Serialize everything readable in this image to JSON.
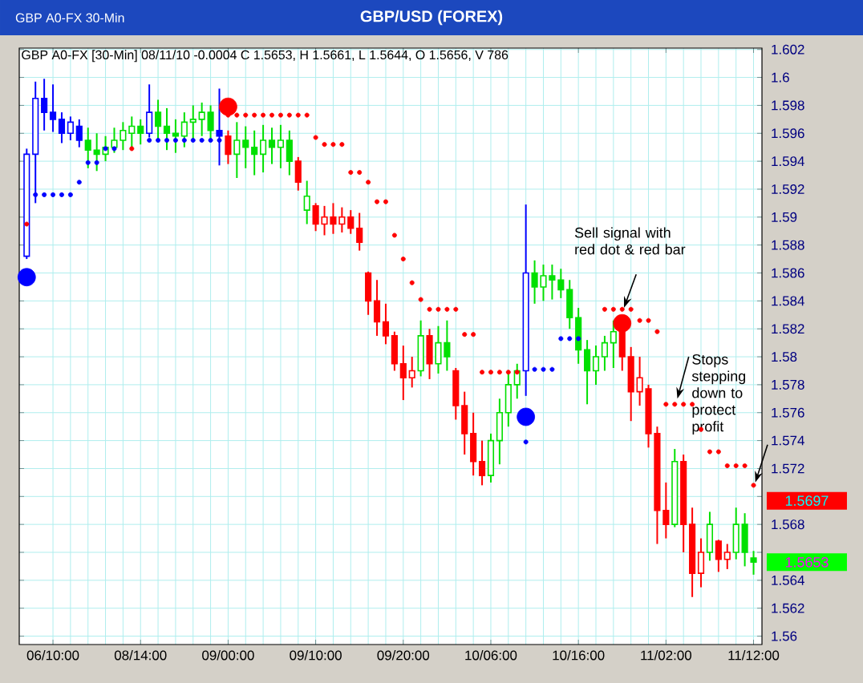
{
  "chart_data": {
    "type": "candlestick",
    "title": "GBP/USD (FOREX)",
    "subtitle": "GBP A0-FX [30-Min] 08/11/10 -0.0004 C 1.5653, H 1.5661, L 1.5644, O 1.5656, V 786",
    "categories": [
      null,
      null,
      null,
      "06/10:00",
      null,
      null,
      null,
      null,
      null,
      null,
      null,
      null,
      null,
      "08/14:00",
      null,
      null,
      null,
      null,
      null,
      null,
      null,
      null,
      null,
      "09/00:00",
      null,
      null,
      null,
      null,
      null,
      null,
      null,
      null,
      null,
      "09/10:00",
      null,
      null,
      null,
      null,
      null,
      null,
      null,
      null,
      null,
      "09/20:00",
      null,
      null,
      null,
      null,
      null,
      null,
      null,
      null,
      null,
      "10/06:00",
      null,
      null,
      null,
      null,
      null,
      null,
      null,
      null,
      null,
      "10/16:00",
      null,
      null,
      null,
      null,
      null,
      null,
      null,
      null,
      null,
      "11/02:00",
      null,
      null,
      null,
      null,
      null,
      null,
      null,
      null,
      null,
      "11/12:00"
    ],
    "ohlc": [
      [
        1.5872,
        1.5949,
        1.587,
        1.5945
      ],
      [
        1.5945,
        1.5997,
        1.591,
        1.5985
      ],
      [
        1.5985,
        1.5999,
        1.5962,
        1.5975
      ],
      [
        1.5975,
        1.5995,
        1.5961,
        1.597
      ],
      [
        1.597,
        1.5975,
        1.5953,
        1.596
      ],
      [
        1.596,
        1.5972,
        1.5955,
        1.5968
      ],
      [
        1.5965,
        1.597,
        1.595,
        1.5955
      ],
      [
        1.5955,
        1.5964,
        1.5935,
        1.5948
      ],
      [
        1.5948,
        1.596,
        1.5933,
        1.5945
      ],
      [
        1.5945,
        1.5958,
        1.594,
        1.595
      ],
      [
        1.595,
        1.5964,
        1.5946,
        1.5955
      ],
      [
        1.5955,
        1.5968,
        1.5948,
        1.5962
      ],
      [
        1.596,
        1.5972,
        1.595,
        1.5965
      ],
      [
        1.5965,
        1.597,
        1.5952,
        1.596
      ],
      [
        1.596,
        1.5995,
        1.5957,
        1.5975
      ],
      [
        1.5975,
        1.5984,
        1.5955,
        1.5965
      ],
      [
        1.5965,
        1.5978,
        1.5948,
        1.596
      ],
      [
        1.596,
        1.597,
        1.5946,
        1.5958
      ],
      [
        1.5958,
        1.5975,
        1.595,
        1.5968
      ],
      [
        1.5968,
        1.598,
        1.5955,
        1.597
      ],
      [
        1.597,
        1.5982,
        1.5958,
        1.5975
      ],
      [
        1.5975,
        1.598,
        1.5955,
        1.5962
      ],
      [
        1.5962,
        1.5992,
        1.5937,
        1.5958
      ],
      [
        1.5958,
        1.5962,
        1.5938,
        1.5945
      ],
      [
        1.5945,
        1.5968,
        1.5928,
        1.5955
      ],
      [
        1.5955,
        1.5965,
        1.5935,
        1.595
      ],
      [
        1.595,
        1.5962,
        1.593,
        1.5945
      ],
      [
        1.5945,
        1.5966,
        1.5932,
        1.5955
      ],
      [
        1.5955,
        1.5964,
        1.5938,
        1.595
      ],
      [
        1.595,
        1.5966,
        1.5935,
        1.5955
      ],
      [
        1.5955,
        1.5962,
        1.593,
        1.594
      ],
      [
        1.594,
        1.5943,
        1.5919,
        1.5925
      ],
      [
        1.5905,
        1.5926,
        1.5895,
        1.5915
      ],
      [
        1.5908,
        1.591,
        1.589,
        1.5895
      ],
      [
        1.5895,
        1.5908,
        1.5887,
        1.59
      ],
      [
        1.59,
        1.591,
        1.5888,
        1.5895
      ],
      [
        1.5895,
        1.5907,
        1.5889,
        1.59
      ],
      [
        1.59,
        1.5905,
        1.5888,
        1.5892
      ],
      [
        1.5892,
        1.5903,
        1.5876,
        1.5882
      ],
      [
        1.586,
        1.5861,
        1.583,
        1.584
      ],
      [
        1.584,
        1.5855,
        1.5815,
        1.5825
      ],
      [
        1.5825,
        1.5838,
        1.5809,
        1.5815
      ],
      [
        1.5815,
        1.5818,
        1.579,
        1.5795
      ],
      [
        1.5795,
        1.5808,
        1.5769,
        1.5785
      ],
      [
        1.5785,
        1.58,
        1.5778,
        1.579
      ],
      [
        1.579,
        1.5826,
        1.5786,
        1.5815
      ],
      [
        1.5815,
        1.582,
        1.5784,
        1.5795
      ],
      [
        1.5795,
        1.5822,
        1.5788,
        1.581
      ],
      [
        1.581,
        1.5826,
        1.579,
        1.58
      ],
      [
        1.579,
        1.5792,
        1.5755,
        1.5765
      ],
      [
        1.5765,
        1.5775,
        1.573,
        1.5745
      ],
      [
        1.5745,
        1.576,
        1.5715,
        1.5725
      ],
      [
        1.5725,
        1.574,
        1.5708,
        1.5715
      ],
      [
        1.5715,
        1.5745,
        1.571,
        1.574
      ],
      [
        1.574,
        1.577,
        1.5723,
        1.576
      ],
      [
        1.576,
        1.579,
        1.575,
        1.578
      ],
      [
        1.578,
        1.5795,
        1.577,
        1.579
      ],
      [
        1.579,
        1.5909,
        1.5772,
        1.586
      ],
      [
        1.586,
        1.5869,
        1.5838,
        1.585
      ],
      [
        1.585,
        1.5866,
        1.584,
        1.5858
      ],
      [
        1.5858,
        1.5866,
        1.5841,
        1.5855
      ],
      [
        1.5855,
        1.5863,
        1.5842,
        1.5848
      ],
      [
        1.5848,
        1.5855,
        1.582,
        1.5828
      ],
      [
        1.5828,
        1.5835,
        1.5795,
        1.5805
      ],
      [
        1.5805,
        1.5812,
        1.5766,
        1.579
      ],
      [
        1.579,
        1.5808,
        1.578,
        1.58
      ],
      [
        1.58,
        1.5815,
        1.579,
        1.581
      ],
      [
        1.581,
        1.5826,
        1.5792,
        1.5818
      ],
      [
        1.5818,
        1.582,
        1.579,
        1.58
      ],
      [
        1.58,
        1.5807,
        1.5754,
        1.5775
      ],
      [
        1.5775,
        1.58,
        1.5765,
        1.5785
      ],
      [
        1.5777,
        1.578,
        1.5735,
        1.5745
      ],
      [
        1.5745,
        1.575,
        1.5666,
        1.569
      ],
      [
        1.569,
        1.571,
        1.567,
        1.568
      ],
      [
        1.568,
        1.5734,
        1.5678,
        1.5725
      ],
      [
        1.5725,
        1.573,
        1.566,
        1.568
      ],
      [
        1.568,
        1.5692,
        1.5628,
        1.5645
      ],
      [
        1.5645,
        1.567,
        1.5635,
        1.566
      ],
      [
        1.566,
        1.5689,
        1.5654,
        1.568
      ],
      [
        1.5668,
        1.5669,
        1.5646,
        1.5655
      ],
      [
        1.5655,
        1.5666,
        1.5648,
        1.566
      ],
      [
        1.566,
        1.5692,
        1.5655,
        1.568
      ],
      [
        1.568,
        1.5688,
        1.565,
        1.566
      ],
      [
        1.5656,
        1.5661,
        1.5644,
        1.5653
      ]
    ],
    "colors": [
      "#0000ff",
      "#0000ff",
      "#0000ff",
      "#0000ff",
      "#0000ff",
      "#0000ff",
      "#0000ff",
      "#00e000",
      "#00e000",
      "#00e000",
      "#00e000",
      "#00e000",
      "#00e000",
      "#00e000",
      "#0000ff",
      "#00e000",
      "#00e000",
      "#00e000",
      "#00e000",
      "#00e000",
      "#00e000",
      "#00e000",
      "#0000ff",
      "#ff0000",
      "#00e000",
      "#00e000",
      "#00e000",
      "#00e000",
      "#00e000",
      "#00e000",
      "#00e000",
      "#ff0000",
      "#00e000",
      "#ff0000",
      "#ff0000",
      "#ff0000",
      "#ff0000",
      "#ff0000",
      "#ff0000",
      "#ff0000",
      "#ff0000",
      "#ff0000",
      "#ff0000",
      "#ff0000",
      "#ff0000",
      "#00e000",
      "#ff0000",
      "#00e000",
      "#00e000",
      "#ff0000",
      "#ff0000",
      "#ff0000",
      "#ff0000",
      "#00e000",
      "#00e000",
      "#00e000",
      "#00e000",
      "#0000ff",
      "#00e000",
      "#00e000",
      "#00e000",
      "#00e000",
      "#00e000",
      "#00e000",
      "#00e000",
      "#00e000",
      "#00e000",
      "#00e000",
      "#ff0000",
      "#ff0000",
      "#ff0000",
      "#ff0000",
      "#ff0000",
      "#ff0000",
      "#00e000",
      "#ff0000",
      "#ff0000",
      "#ff0000",
      "#00e000",
      "#ff0000",
      "#ff0000",
      "#00e000",
      "#00e000",
      "#00e000"
    ],
    "series": [
      {
        "type": "scatter",
        "marker": "circle",
        "values": [
          1.5895,
          1.5916,
          1.5916,
          1.5916,
          1.5916,
          1.5916,
          1.5925,
          1.5939,
          1.5939,
          1.5949,
          1.5949,
          null,
          1.5949,
          null,
          1.5955,
          1.5955,
          1.5955,
          1.5955,
          1.5955,
          1.5955,
          1.5955,
          1.5955,
          1.5955,
          1.5973,
          1.5973,
          1.5973,
          1.5973,
          1.5973,
          1.5973,
          1.5973,
          1.5973,
          1.5973,
          1.5973,
          1.5957,
          1.5952,
          1.5952,
          1.5952,
          1.5932,
          1.5932,
          1.5925,
          1.5911,
          1.5911,
          1.5887,
          1.587,
          1.5853,
          1.5841,
          1.5834,
          1.5834,
          1.5834,
          1.5834,
          1.5816,
          1.5816,
          1.5789,
          1.5789,
          1.5789,
          1.5789,
          1.5789,
          1.5739,
          1.5791,
          1.5791,
          1.5791,
          1.5813,
          1.5813,
          1.5813,
          null,
          null,
          1.5834,
          1.5834,
          1.5834,
          1.5834,
          1.5826,
          1.5826,
          1.5818,
          1.5766,
          1.5766,
          1.5766,
          1.5766,
          1.5748,
          1.5732,
          1.5732,
          1.5722,
          1.5722,
          1.5722,
          1.5708
        ],
        "colors": [
          "#ff0000",
          "#0000ff",
          "#0000ff",
          "#0000ff",
          "#0000ff",
          "#0000ff",
          "#0000ff",
          "#0000ff",
          "#0000ff",
          "#0000ff",
          "#0000ff",
          null,
          "#ff0000",
          null,
          "#0000ff",
          "#0000ff",
          "#0000ff",
          "#0000ff",
          "#0000ff",
          "#0000ff",
          "#0000ff",
          "#0000ff",
          "#0000ff",
          "#ff0000",
          "#ff0000",
          "#ff0000",
          "#ff0000",
          "#ff0000",
          "#ff0000",
          "#ff0000",
          "#ff0000",
          "#ff0000",
          "#ff0000",
          "#ff0000",
          "#ff0000",
          "#ff0000",
          "#ff0000",
          "#ff0000",
          "#ff0000",
          "#ff0000",
          "#ff0000",
          "#ff0000",
          "#ff0000",
          "#ff0000",
          "#ff0000",
          "#ff0000",
          "#ff0000",
          "#ff0000",
          "#ff0000",
          "#ff0000",
          "#ff0000",
          "#ff0000",
          "#ff0000",
          "#ff0000",
          "#ff0000",
          "#ff0000",
          "#ff0000",
          "#0000ff",
          "#0000ff",
          "#0000ff",
          "#0000ff",
          "#0000ff",
          "#0000ff",
          "#0000ff",
          null,
          null,
          "#ff0000",
          "#ff0000",
          "#ff0000",
          "#ff0000",
          "#ff0000",
          "#ff0000",
          "#ff0000",
          "#ff0000",
          "#ff0000",
          "#ff0000",
          "#ff0000",
          "#ff0000",
          "#ff0000",
          "#ff0000",
          "#ff0000",
          "#ff0000",
          "#ff0000",
          "#ff0000"
        ]
      },
      {
        "type": "bubble",
        "marker": "circle",
        "values": [
          1.5857,
          null,
          null,
          null,
          null,
          null,
          null,
          null,
          null,
          null,
          null,
          null,
          null,
          null,
          null,
          null,
          null,
          null,
          null,
          null,
          null,
          null,
          null,
          1.5979,
          null,
          null,
          null,
          null,
          null,
          null,
          null,
          null,
          null,
          null,
          null,
          null,
          null,
          null,
          null,
          null,
          null,
          null,
          null,
          null,
          null,
          null,
          null,
          null,
          null,
          null,
          null,
          null,
          null,
          null,
          null,
          null,
          null,
          1.5757,
          null,
          null,
          null,
          null,
          null,
          null,
          null,
          null,
          null,
          null,
          1.5824,
          null,
          null,
          null,
          null,
          null,
          null,
          null,
          null,
          null,
          null,
          null,
          null,
          null,
          null,
          null
        ],
        "colors": [
          "#0000ff",
          null,
          null,
          null,
          null,
          null,
          null,
          null,
          null,
          null,
          null,
          null,
          null,
          null,
          null,
          null,
          null,
          null,
          null,
          null,
          null,
          null,
          null,
          "#ff0000",
          null,
          null,
          null,
          null,
          null,
          null,
          null,
          null,
          null,
          null,
          null,
          null,
          null,
          null,
          null,
          null,
          null,
          null,
          null,
          null,
          null,
          null,
          null,
          null,
          null,
          null,
          null,
          null,
          null,
          null,
          null,
          null,
          null,
          "#0000ff",
          null,
          null,
          null,
          null,
          null,
          null,
          null,
          null,
          null,
          null,
          "#ff0000",
          null,
          null,
          null,
          null,
          null,
          null,
          null,
          null,
          null,
          null,
          null,
          null,
          null,
          null,
          null
        ]
      }
    ],
    "ylim": [
      1.5594,
      1.6021
    ],
    "yticks": [
      1.56,
      1.562,
      1.564,
      {
        "value": 1.566,
        "label": null
      },
      1.568,
      {
        "value": 1.57,
        "label": null
      },
      1.572,
      1.574,
      1.576,
      1.578,
      1.58,
      1.582,
      1.584,
      1.586,
      1.588,
      1.59,
      1.592,
      1.594,
      1.596,
      1.598,
      1.6,
      1.602
    ],
    "grid": true,
    "annotations": [
      "GBP A0-FX 30-Min",
      "Sell signal with red dot & red bar",
      "Stops stepping down to protect profit",
      "1.5697",
      "1.5653"
    ]
  }
}
